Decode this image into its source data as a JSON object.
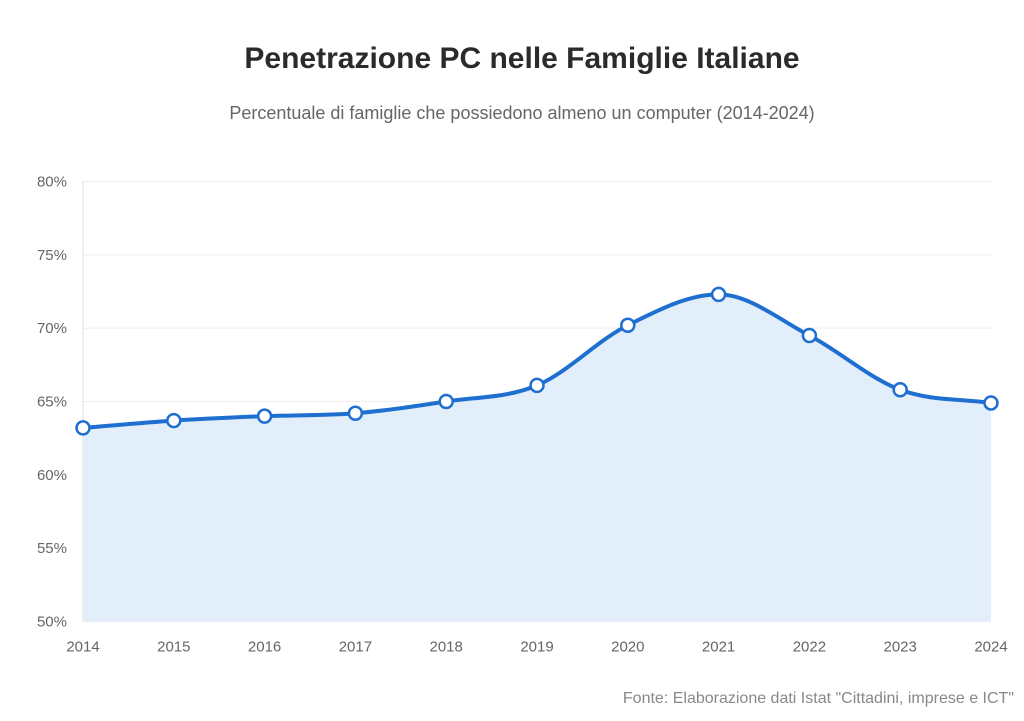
{
  "chart_data": {
    "type": "area",
    "title": "Penetrazione PC nelle Famiglie Italiane",
    "subtitle": "Percentuale di famiglie che possiedono almeno un computer (2014-2024)",
    "source": "Fonte: Elaborazione dati Istat \"Cittadini, imprese e ICT\"",
    "xlabel": "",
    "ylabel": "",
    "categories": [
      "2014",
      "2015",
      "2016",
      "2017",
      "2018",
      "2019",
      "2020",
      "2021",
      "2022",
      "2023",
      "2024"
    ],
    "values": [
      63.2,
      63.7,
      64.0,
      64.2,
      65.0,
      66.1,
      70.2,
      72.3,
      69.5,
      65.8,
      64.9
    ],
    "ylim": [
      50,
      80
    ],
    "yticks": [
      "50%",
      "55%",
      "60%",
      "65%",
      "70%",
      "75%",
      "80%"
    ],
    "ytick_values": [
      50,
      55,
      60,
      65,
      70,
      75,
      80
    ],
    "grid": true,
    "legend": "none",
    "colors": {
      "line": "#1f6fd1",
      "fill": "#e3eefb",
      "grid": "#eeeeee",
      "marker_fill": "#ffffff"
    }
  }
}
